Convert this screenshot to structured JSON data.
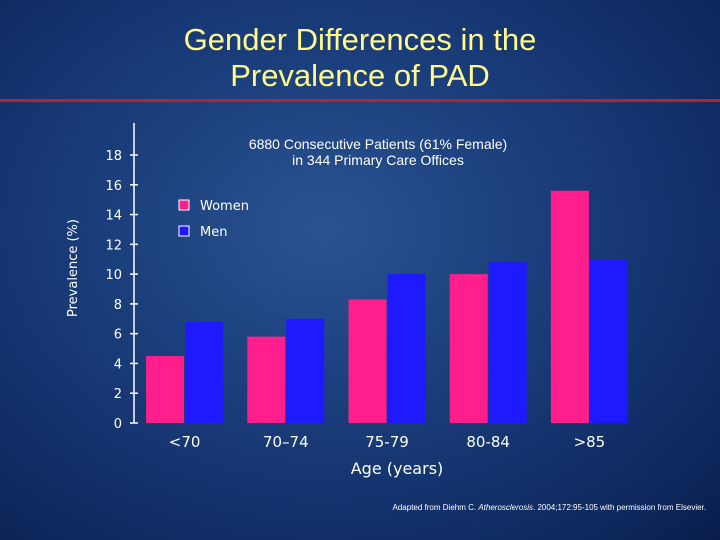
{
  "title_line1": "Gender Differences in the",
  "title_line2": "Prevalence of PAD",
  "credit": {
    "before": "Adapted from Diehm C. ",
    "journal": "Atherosclerosis",
    "after": ". 2004;172:95-105 with permission from Elsevier."
  },
  "colors": {
    "women": "#ff1f8c",
    "men": "#1f19ff",
    "title": "#fffb8e",
    "rule": "#b0262c"
  },
  "chart_data": {
    "type": "bar",
    "subtitle_line1": "6880 Consecutive Patients (61% Female)",
    "subtitle_line2": "in 344 Primary Care Offices",
    "xlabel": "Age (years)",
    "ylabel": "Prevalence (%)",
    "categories": [
      "<70",
      "70–74",
      "75-79",
      "80-84",
      ">85"
    ],
    "ylim": [
      0,
      18
    ],
    "yticks": [
      "0",
      "2",
      "4",
      "6",
      "8",
      "10",
      "12",
      "14",
      "16",
      "18"
    ],
    "legend_position": "upper-left",
    "grid": false,
    "series": [
      {
        "name": "Women",
        "color": "#ff1f8c",
        "values": [
          4.5,
          5.8,
          8.3,
          10.0,
          15.6
        ]
      },
      {
        "name": "Men",
        "color": "#1f19ff",
        "values": [
          6.8,
          7.0,
          10.0,
          10.8,
          11.0
        ]
      }
    ]
  }
}
